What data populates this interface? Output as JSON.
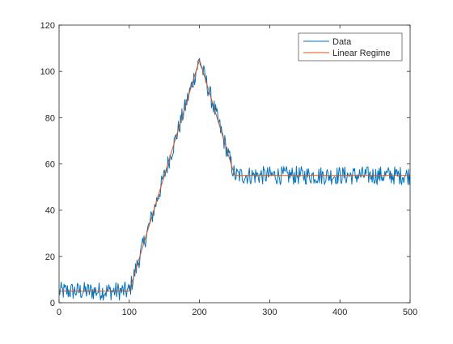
{
  "chart_data": {
    "type": "line",
    "title": "",
    "xlabel": "",
    "ylabel": "",
    "xlim": [
      0,
      500
    ],
    "ylim": [
      0,
      120
    ],
    "xticks": [
      0,
      100,
      200,
      300,
      400,
      500
    ],
    "yticks": [
      0,
      20,
      40,
      60,
      80,
      100,
      120
    ],
    "grid": false,
    "legend_position": "top-right",
    "noise_amplitude": 4,
    "series": [
      {
        "name": "Data",
        "color": "#0072BD",
        "style": "noisy",
        "x": [
          0,
          100,
          200,
          250,
          500
        ],
        "y": [
          5,
          5,
          105,
          55,
          55
        ]
      },
      {
        "name": "Linear Regime",
        "color": "#D95319",
        "style": "line",
        "x": [
          0,
          100,
          200,
          250,
          500
        ],
        "y": [
          5,
          5,
          105,
          55,
          55
        ]
      }
    ]
  }
}
